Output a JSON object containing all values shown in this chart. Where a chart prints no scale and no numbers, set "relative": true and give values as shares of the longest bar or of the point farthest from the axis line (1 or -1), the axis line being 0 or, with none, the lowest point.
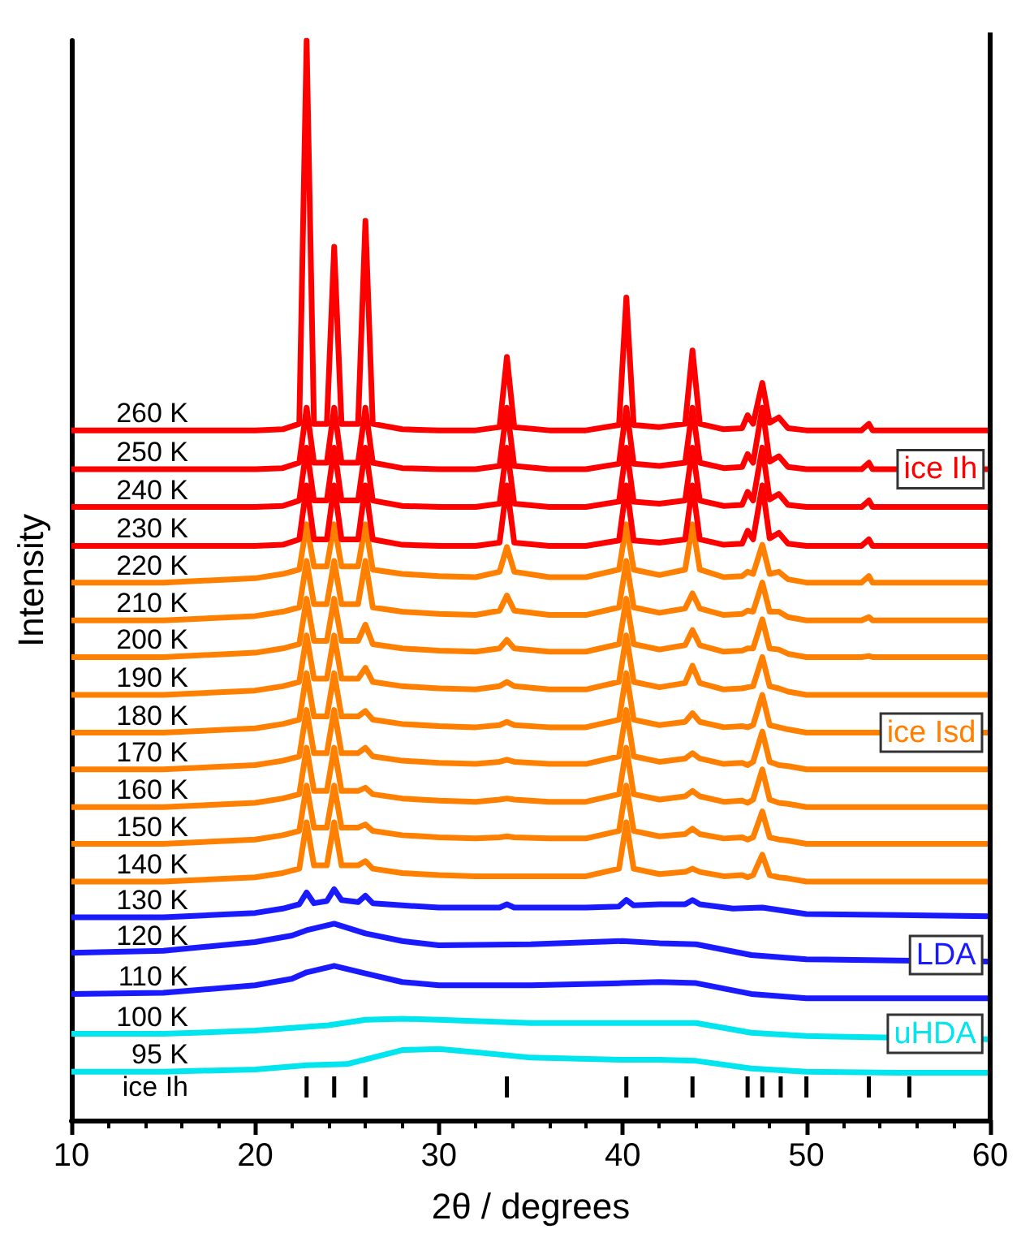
{
  "chart_data": [
    {
      "type": "line",
      "relative": true,
      "marker": "none",
      "xlabel": "2θ / degrees",
      "ylabel": "Intensity",
      "xlim": [
        10,
        60
      ],
      "xticks": [
        10,
        20,
        30,
        40,
        50,
        60
      ],
      "x": [
        10,
        15,
        20,
        21.5,
        22.4,
        22.8,
        23.2,
        23.9,
        24.3,
        24.7,
        25.6,
        26.0,
        26.4,
        28,
        30,
        32,
        33.3,
        33.7,
        34.1,
        36,
        38,
        39.8,
        40.2,
        40.6,
        42,
        43.4,
        43.8,
        44.2,
        45.5,
        46.5,
        46.8,
        47.1,
        47.6,
        48.0,
        48.5,
        49,
        50,
        53.0,
        53.4,
        53.6,
        60
      ],
      "annotations": [
        {
          "text": "ice Ih",
          "x": 57.3,
          "y": 0.603
        },
        {
          "text": "ice Isd",
          "x": 56.8,
          "y": 0.359
        },
        {
          "text": "LDA",
          "x": 57.6,
          "y": 0.153
        },
        {
          "text": "uHDA",
          "x": 57.0,
          "y": 0.08
        }
      ],
      "series": [
        {
          "name": "260 K",
          "color": "#ff0000",
          "values": [
            0.639,
            0.639,
            0.639,
            0.64,
            0.645,
            1.0,
            0.645,
            0.645,
            0.809,
            0.645,
            0.645,
            0.833,
            0.645,
            0.64,
            0.639,
            0.639,
            0.642,
            0.707,
            0.642,
            0.639,
            0.639,
            0.644,
            0.762,
            0.644,
            0.642,
            0.645,
            0.713,
            0.645,
            0.64,
            0.641,
            0.653,
            0.645,
            0.683,
            0.646,
            0.651,
            0.641,
            0.639,
            0.639,
            0.645,
            0.639,
            0.639
          ]
        },
        {
          "name": "250 K",
          "color": "#ff0000",
          "values": [
            0.603,
            0.603,
            0.603,
            0.604,
            0.609,
            0.66,
            0.609,
            0.609,
            0.66,
            0.609,
            0.609,
            0.66,
            0.609,
            0.604,
            0.603,
            0.603,
            0.606,
            0.66,
            0.606,
            0.603,
            0.603,
            0.608,
            0.66,
            0.608,
            0.606,
            0.609,
            0.66,
            0.609,
            0.604,
            0.605,
            0.617,
            0.609,
            0.66,
            0.61,
            0.615,
            0.605,
            0.603,
            0.603,
            0.609,
            0.603,
            0.603
          ]
        },
        {
          "name": "240 K",
          "color": "#ff0000",
          "values": [
            0.568,
            0.568,
            0.568,
            0.569,
            0.574,
            0.623,
            0.574,
            0.574,
            0.623,
            0.574,
            0.574,
            0.623,
            0.574,
            0.569,
            0.568,
            0.568,
            0.571,
            0.623,
            0.571,
            0.568,
            0.568,
            0.573,
            0.623,
            0.573,
            0.571,
            0.574,
            0.623,
            0.574,
            0.569,
            0.57,
            0.582,
            0.574,
            0.623,
            0.575,
            0.58,
            0.57,
            0.568,
            0.568,
            0.574,
            0.568,
            0.568
          ]
        },
        {
          "name": "230 K",
          "color": "#ff0000",
          "values": [
            0.532,
            0.532,
            0.532,
            0.533,
            0.538,
            0.588,
            0.538,
            0.538,
            0.588,
            0.538,
            0.538,
            0.588,
            0.538,
            0.533,
            0.532,
            0.532,
            0.535,
            0.588,
            0.535,
            0.532,
            0.532,
            0.537,
            0.588,
            0.537,
            0.535,
            0.538,
            0.588,
            0.538,
            0.533,
            0.534,
            0.546,
            0.538,
            0.588,
            0.539,
            0.544,
            0.534,
            0.532,
            0.532,
            0.538,
            0.532,
            0.532
          ]
        },
        {
          "name": "220 K",
          "color": "#ff8000",
          "values": [
            0.498,
            0.498,
            0.502,
            0.506,
            0.51,
            0.552,
            0.513,
            0.513,
            0.552,
            0.513,
            0.513,
            0.552,
            0.51,
            0.506,
            0.504,
            0.503,
            0.508,
            0.531,
            0.508,
            0.503,
            0.503,
            0.51,
            0.552,
            0.51,
            0.505,
            0.51,
            0.552,
            0.51,
            0.503,
            0.504,
            0.508,
            0.506,
            0.533,
            0.506,
            0.508,
            0.501,
            0.498,
            0.498,
            0.504,
            0.498,
            0.498
          ]
        },
        {
          "name": "210 K",
          "color": "#ff8000",
          "values": [
            0.463,
            0.463,
            0.467,
            0.471,
            0.475,
            0.518,
            0.478,
            0.478,
            0.518,
            0.478,
            0.478,
            0.518,
            0.475,
            0.471,
            0.469,
            0.468,
            0.472,
            0.486,
            0.472,
            0.468,
            0.468,
            0.475,
            0.518,
            0.475,
            0.47,
            0.474,
            0.488,
            0.474,
            0.468,
            0.469,
            0.472,
            0.471,
            0.498,
            0.471,
            0.471,
            0.466,
            0.463,
            0.463,
            0.466,
            0.463,
            0.463
          ]
        },
        {
          "name": "200 K",
          "color": "#ff8000",
          "values": [
            0.429,
            0.429,
            0.433,
            0.437,
            0.441,
            0.483,
            0.444,
            0.444,
            0.483,
            0.444,
            0.444,
            0.459,
            0.441,
            0.437,
            0.435,
            0.434,
            0.437,
            0.445,
            0.437,
            0.434,
            0.434,
            0.441,
            0.483,
            0.441,
            0.436,
            0.44,
            0.454,
            0.44,
            0.434,
            0.435,
            0.437,
            0.437,
            0.464,
            0.437,
            0.436,
            0.432,
            0.429,
            0.429,
            0.43,
            0.429,
            0.429
          ]
        },
        {
          "name": "190 K",
          "color": "#ff8000",
          "values": [
            0.394,
            0.394,
            0.398,
            0.402,
            0.406,
            0.449,
            0.409,
            0.409,
            0.449,
            0.409,
            0.409,
            0.419,
            0.406,
            0.402,
            0.4,
            0.399,
            0.402,
            0.406,
            0.402,
            0.399,
            0.399,
            0.406,
            0.449,
            0.406,
            0.401,
            0.405,
            0.421,
            0.405,
            0.399,
            0.4,
            0.401,
            0.402,
            0.429,
            0.402,
            0.4,
            0.397,
            0.394,
            0.394,
            0.394,
            0.394,
            0.394
          ]
        },
        {
          "name": "180 K",
          "color": "#ff8000",
          "values": [
            0.359,
            0.359,
            0.363,
            0.367,
            0.371,
            0.414,
            0.374,
            0.374,
            0.414,
            0.374,
            0.374,
            0.379,
            0.371,
            0.367,
            0.365,
            0.364,
            0.366,
            0.369,
            0.366,
            0.364,
            0.364,
            0.371,
            0.414,
            0.371,
            0.366,
            0.369,
            0.377,
            0.369,
            0.364,
            0.365,
            0.364,
            0.366,
            0.394,
            0.366,
            0.364,
            0.362,
            0.359,
            0.359,
            0.359,
            0.359,
            0.359
          ]
        },
        {
          "name": "170 K",
          "color": "#ff8000",
          "values": [
            0.325,
            0.325,
            0.329,
            0.333,
            0.337,
            0.38,
            0.34,
            0.34,
            0.38,
            0.34,
            0.34,
            0.345,
            0.337,
            0.333,
            0.331,
            0.33,
            0.332,
            0.334,
            0.332,
            0.33,
            0.33,
            0.337,
            0.38,
            0.337,
            0.332,
            0.335,
            0.34,
            0.335,
            0.33,
            0.331,
            0.329,
            0.332,
            0.36,
            0.332,
            0.329,
            0.328,
            0.325,
            0.325,
            0.325,
            0.325,
            0.325
          ]
        },
        {
          "name": "160 K",
          "color": "#ff8000",
          "values": [
            0.29,
            0.29,
            0.294,
            0.298,
            0.302,
            0.345,
            0.305,
            0.305,
            0.345,
            0.305,
            0.305,
            0.308,
            0.302,
            0.298,
            0.296,
            0.295,
            0.297,
            0.298,
            0.297,
            0.295,
            0.295,
            0.302,
            0.345,
            0.302,
            0.297,
            0.3,
            0.305,
            0.3,
            0.295,
            0.296,
            0.294,
            0.297,
            0.325,
            0.297,
            0.294,
            0.293,
            0.29,
            0.29,
            0.29,
            0.29,
            0.29
          ]
        },
        {
          "name": "150 K",
          "color": "#ff8000",
          "values": [
            0.256,
            0.256,
            0.26,
            0.264,
            0.268,
            0.31,
            0.271,
            0.271,
            0.31,
            0.271,
            0.271,
            0.274,
            0.268,
            0.264,
            0.262,
            0.261,
            0.262,
            0.263,
            0.262,
            0.261,
            0.261,
            0.268,
            0.31,
            0.268,
            0.263,
            0.265,
            0.27,
            0.265,
            0.261,
            0.262,
            0.26,
            0.262,
            0.286,
            0.262,
            0.26,
            0.259,
            0.256,
            0.256,
            0.256,
            0.256,
            0.256
          ]
        },
        {
          "name": "140 K",
          "color": "#ff8000",
          "values": [
            0.221,
            0.221,
            0.225,
            0.229,
            0.233,
            0.276,
            0.236,
            0.236,
            0.276,
            0.236,
            0.236,
            0.24,
            0.233,
            0.229,
            0.227,
            0.226,
            0.226,
            0.226,
            0.226,
            0.226,
            0.226,
            0.233,
            0.276,
            0.233,
            0.228,
            0.23,
            0.233,
            0.23,
            0.226,
            0.227,
            0.225,
            0.227,
            0.246,
            0.227,
            0.225,
            0.224,
            0.221,
            0.221,
            0.221,
            0.221,
            0.221
          ]
        },
        {
          "name": "130 K",
          "color": "#1a1aff",
          "x": [
            10,
            15,
            20,
            21.5,
            22.4,
            22.8,
            23.2,
            23.9,
            24.3,
            24.7,
            25.6,
            26.0,
            26.4,
            28,
            30,
            33.3,
            33.7,
            34.1,
            38,
            39.8,
            40.2,
            40.6,
            42,
            43.4,
            43.8,
            44.2,
            46,
            47.6,
            50,
            55,
            60
          ],
          "values": [
            0.188,
            0.188,
            0.192,
            0.196,
            0.2,
            0.211,
            0.201,
            0.203,
            0.214,
            0.204,
            0.202,
            0.208,
            0.201,
            0.199,
            0.197,
            0.197,
            0.2,
            0.197,
            0.197,
            0.198,
            0.204,
            0.199,
            0.2,
            0.2,
            0.204,
            0.2,
            0.196,
            0.197,
            0.191,
            0.19,
            0.189
          ]
        },
        {
          "name": "120 K",
          "color": "#1a1aff",
          "x": [
            10,
            15,
            20,
            22,
            22.8,
            24.3,
            26,
            28,
            30,
            35,
            40,
            42,
            44,
            47,
            50,
            55,
            60
          ],
          "values": [
            0.155,
            0.157,
            0.165,
            0.171,
            0.176,
            0.182,
            0.173,
            0.166,
            0.162,
            0.163,
            0.166,
            0.164,
            0.163,
            0.153,
            0.149,
            0.148,
            0.147
          ]
        },
        {
          "name": "110 K",
          "color": "#1a1aff",
          "x": [
            10,
            15,
            20,
            22,
            22.8,
            24.3,
            26,
            28,
            30,
            35,
            40,
            42,
            44,
            47,
            50,
            55,
            60
          ],
          "values": [
            0.117,
            0.118,
            0.125,
            0.131,
            0.137,
            0.143,
            0.136,
            0.128,
            0.125,
            0.125,
            0.127,
            0.128,
            0.127,
            0.117,
            0.113,
            0.113,
            0.113
          ]
        },
        {
          "name": "100 K",
          "color": "#00e5ee",
          "x": [
            10,
            15,
            20,
            24,
            26,
            28,
            30,
            35,
            40,
            42,
            44,
            47,
            50,
            60
          ],
          "values": [
            0.08,
            0.08,
            0.083,
            0.088,
            0.093,
            0.094,
            0.093,
            0.09,
            0.09,
            0.09,
            0.09,
            0.081,
            0.078,
            0.075
          ]
        },
        {
          "name": "95 K",
          "color": "#00e5ee",
          "x": [
            10,
            15,
            20,
            22.8,
            25,
            28,
            30,
            32,
            35,
            40,
            42,
            44,
            47,
            50,
            55,
            60
          ],
          "values": [
            0.045,
            0.045,
            0.047,
            0.051,
            0.052,
            0.065,
            0.066,
            0.063,
            0.058,
            0.056,
            0.056,
            0.055,
            0.048,
            0.045,
            0.044,
            0.044
          ]
        }
      ]
    },
    {
      "type": "bar",
      "relative": true,
      "xlim": [
        10,
        60
      ],
      "series": [
        {
          "name": "ice Ih",
          "color": "#000000",
          "x": [
            22.8,
            24.3,
            26.0,
            33.7,
            40.2,
            43.8,
            46.8,
            47.6,
            48.6,
            50.0,
            53.4,
            55.6
          ],
          "values": [
            1,
            1,
            1,
            1,
            1,
            1,
            1,
            1,
            1,
            1,
            1,
            1
          ]
        }
      ]
    }
  ]
}
